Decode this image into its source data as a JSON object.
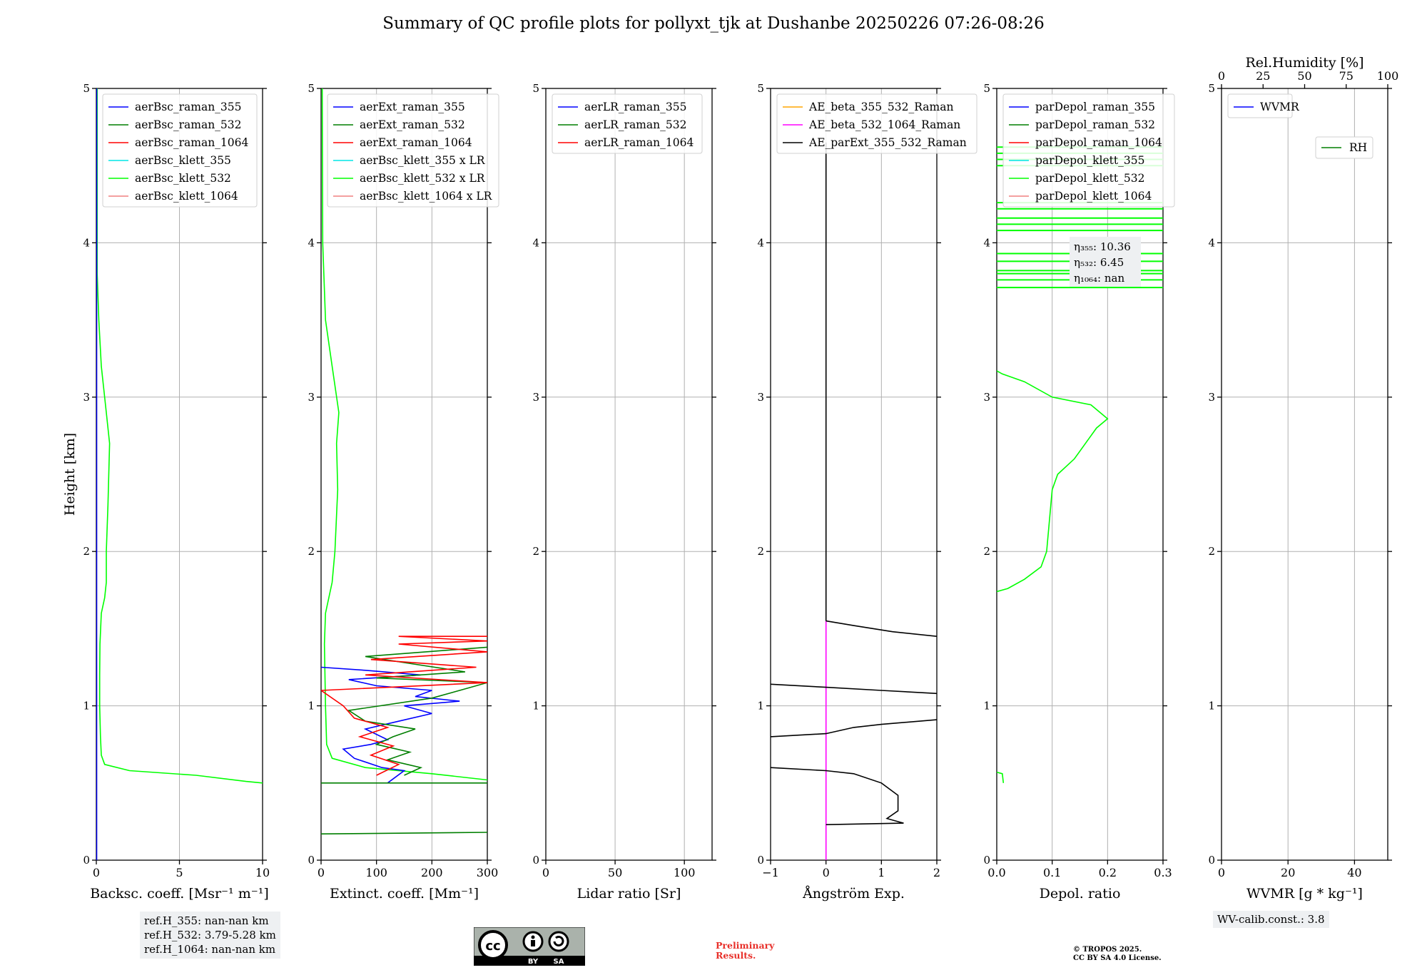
{
  "title": "Summary of QC profile plots for pollyxt_tjk at Dushanbe 20250226 07:26-08:26",
  "ylabel": "Height [km]",
  "y_ticks": [
    "0",
    "1",
    "2",
    "3",
    "4",
    "5"
  ],
  "colors": {
    "blue": "#0000ff",
    "green": "#007f00",
    "red": "#ff0000",
    "cyan": "#00e5e5",
    "lime": "#00ff00",
    "salmon": "#f08080",
    "orange": "#ffa500",
    "magenta": "#ff00ff",
    "black": "#000000"
  },
  "chart_data": [
    {
      "type": "line",
      "xlabel": "Backsc. coeff. [Msr⁻¹ m⁻¹]",
      "xlim": [
        0,
        10
      ],
      "ylim": [
        0,
        5
      ],
      "x_ticks": [
        "0",
        "5",
        "10"
      ],
      "legend": [
        "aerBsc_raman_355",
        "aerBsc_raman_532",
        "aerBsc_raman_1064",
        "aerBsc_klett_355",
        "aerBsc_klett_532",
        "aerBsc_klett_1064"
      ],
      "legend_colors": [
        "blue",
        "green",
        "red",
        "cyan",
        "lime",
        "salmon"
      ],
      "series": [
        {
          "name": "aerBsc_klett_532",
          "color": "lime",
          "points": [
            [
              10,
              0.5
            ],
            [
              9,
              0.51
            ],
            [
              6,
              0.55
            ],
            [
              2,
              0.58
            ],
            [
              0.5,
              0.62
            ],
            [
              0.3,
              0.68
            ],
            [
              0.25,
              0.8
            ],
            [
              0.2,
              1.0
            ],
            [
              0.2,
              1.2
            ],
            [
              0.22,
              1.4
            ],
            [
              0.3,
              1.6
            ],
            [
              0.5,
              1.7
            ],
            [
              0.6,
              1.8
            ],
            [
              0.6,
              2.0
            ],
            [
              0.7,
              2.3
            ],
            [
              0.8,
              2.7
            ],
            [
              0.6,
              2.9
            ],
            [
              0.3,
              3.2
            ],
            [
              0.15,
              3.5
            ],
            [
              0.05,
              3.8
            ],
            [
              0.05,
              4.2
            ],
            [
              0.05,
              4.6
            ],
            [
              0.05,
              5.0
            ]
          ]
        },
        {
          "name": "aerBsc_raman_355",
          "color": "blue",
          "points": [
            [
              0.02,
              0.0
            ],
            [
              0.02,
              5.0
            ]
          ]
        }
      ]
    },
    {
      "type": "line",
      "xlabel": "Extinct. coeff. [Mm⁻¹]",
      "xlim": [
        0,
        300
      ],
      "ylim": [
        0,
        5
      ],
      "x_ticks": [
        "0",
        "100",
        "200",
        "300"
      ],
      "legend": [
        "aerExt_raman_355",
        "aerExt_raman_532",
        "aerExt_raman_1064",
        "aerBsc_klett_355 x LR",
        "aerBsc_klett_532 x LR",
        "aerBsc_klett_1064 x LR"
      ],
      "legend_colors": [
        "blue",
        "green",
        "red",
        "cyan",
        "lime",
        "salmon"
      ],
      "series": [
        {
          "name": "aerBsc_klett_532 x LR",
          "color": "lime",
          "points": [
            [
              300,
              0.52
            ],
            [
              200,
              0.56
            ],
            [
              80,
              0.6
            ],
            [
              20,
              0.66
            ],
            [
              10,
              0.75
            ],
            [
              8,
              1.0
            ],
            [
              6,
              1.4
            ],
            [
              8,
              1.6
            ],
            [
              20,
              1.8
            ],
            [
              25,
              2.0
            ],
            [
              30,
              2.4
            ],
            [
              28,
              2.7
            ],
            [
              32,
              2.9
            ],
            [
              20,
              3.2
            ],
            [
              8,
              3.5
            ],
            [
              3,
              4.0
            ],
            [
              2,
              5.0
            ]
          ]
        },
        {
          "name": "aerExt_raman_355",
          "color": "blue",
          "points": [
            [
              120,
              0.5
            ],
            [
              150,
              0.58
            ],
            [
              110,
              0.6
            ],
            [
              60,
              0.66
            ],
            [
              40,
              0.72
            ],
            [
              90,
              0.75
            ],
            [
              120,
              0.78
            ],
            [
              80,
              0.85
            ],
            [
              140,
              0.9
            ],
            [
              200,
              0.95
            ],
            [
              150,
              1.0
            ],
            [
              250,
              1.03
            ],
            [
              170,
              1.06
            ],
            [
              200,
              1.1
            ],
            [
              100,
              1.13
            ],
            [
              50,
              1.17
            ],
            [
              180,
              1.2
            ],
            [
              80,
              1.23
            ],
            [
              0,
              1.25
            ]
          ]
        },
        {
          "name": "aerExt_raman_532",
          "color": "green",
          "points": [
            [
              0,
              0.17
            ],
            [
              300,
              0.18
            ]
          ]
        },
        {
          "name": "aerExt_raman_532 b",
          "color": "green",
          "points": [
            [
              0,
              0.5
            ],
            [
              300,
              0.5
            ]
          ]
        },
        {
          "name": "aerExt_raman_532 c",
          "color": "green",
          "points": [
            [
              150,
              0.55
            ],
            [
              180,
              0.6
            ],
            [
              120,
              0.65
            ],
            [
              160,
              0.7
            ],
            [
              100,
              0.75
            ],
            [
              130,
              0.8
            ],
            [
              170,
              0.85
            ],
            [
              80,
              0.9
            ],
            [
              50,
              0.97
            ],
            [
              200,
              1.05
            ],
            [
              250,
              1.1
            ],
            [
              300,
              1.15
            ],
            [
              100,
              1.18
            ],
            [
              260,
              1.22
            ],
            [
              150,
              1.28
            ],
            [
              80,
              1.32
            ],
            [
              300,
              1.38
            ]
          ]
        },
        {
          "name": "aerExt_raman_1064",
          "color": "red",
          "points": [
            [
              100,
              0.55
            ],
            [
              140,
              0.62
            ],
            [
              90,
              0.68
            ],
            [
              130,
              0.74
            ],
            [
              70,
              0.8
            ],
            [
              120,
              0.86
            ],
            [
              60,
              0.92
            ],
            [
              40,
              1.0
            ],
            [
              0,
              1.1
            ],
            [
              300,
              1.15
            ],
            [
              80,
              1.2
            ],
            [
              280,
              1.25
            ],
            [
              90,
              1.3
            ],
            [
              300,
              1.35
            ],
            [
              140,
              1.4
            ],
            [
              300,
              1.42
            ],
            [
              140,
              1.45
            ],
            [
              300,
              1.45
            ]
          ]
        }
      ]
    },
    {
      "type": "line",
      "xlabel": "Lidar ratio [Sr]",
      "xlim": [
        0,
        120
      ],
      "ylim": [
        0,
        5
      ],
      "x_ticks": [
        "0",
        "50",
        "100"
      ],
      "legend": [
        "aerLR_raman_355",
        "aerLR_raman_532",
        "aerLR_raman_1064"
      ],
      "legend_colors": [
        "blue",
        "green",
        "red"
      ],
      "series": []
    },
    {
      "type": "line",
      "xlabel": "Ångström Exp.",
      "xlim": [
        -1,
        2
      ],
      "ylim": [
        0,
        5
      ],
      "x_ticks": [
        "−1",
        "0",
        "1",
        "2"
      ],
      "legend": [
        "AE_beta_355_532_Raman",
        "AE_beta_532_1064_Raman",
        "AE_parExt_355_532_Raman"
      ],
      "legend_colors": [
        "orange",
        "magenta",
        "black"
      ],
      "series": [
        {
          "name": "AE_beta_532_1064_Raman",
          "color": "magenta",
          "points": [
            [
              0,
              0.0
            ],
            [
              0,
              1.55
            ]
          ]
        },
        {
          "name": "AE_parExt_355_532_Raman",
          "color": "black",
          "points": [
            [
              0,
              0.23
            ],
            [
              1.4,
              0.24
            ],
            [
              1.1,
              0.27
            ],
            [
              1.3,
              0.32
            ],
            [
              1.3,
              0.42
            ],
            [
              1.0,
              0.5
            ],
            [
              0.5,
              0.56
            ],
            [
              0,
              0.58
            ],
            [
              -1,
              0.6
            ]
          ]
        },
        {
          "name": "AE_parExt_355_532_Raman b",
          "color": "black",
          "points": [
            [
              -1,
              0.8
            ],
            [
              0,
              0.82
            ],
            [
              0.5,
              0.86
            ],
            [
              1.0,
              0.88
            ],
            [
              2,
              0.91
            ]
          ]
        },
        {
          "name": "AE_parExt_355_532_Raman c",
          "color": "black",
          "points": [
            [
              -1,
              1.14
            ],
            [
              0,
              1.12
            ],
            [
              1,
              1.1
            ],
            [
              2,
              1.08
            ]
          ]
        },
        {
          "name": "AE_parExt_355_532_Raman d",
          "color": "black",
          "points": [
            [
              0,
              1.55
            ],
            [
              0.5,
              1.52
            ],
            [
              1.2,
              1.48
            ],
            [
              2,
              1.45
            ]
          ]
        },
        {
          "name": "AE_parExt_355_532_Raman e",
          "color": "black",
          "points": [
            [
              0,
              1.55
            ],
            [
              0,
              4.65
            ]
          ]
        }
      ]
    },
    {
      "type": "line",
      "xlabel": "Depol. ratio",
      "xlim": [
        0,
        0.3
      ],
      "ylim": [
        0,
        5
      ],
      "x_ticks": [
        "0.0",
        "0.1",
        "0.2",
        "0.3"
      ],
      "legend": [
        "parDepol_raman_355",
        "parDepol_raman_532",
        "parDepol_raman_1064",
        "parDepol_klett_355",
        "parDepol_klett_532",
        "parDepol_klett_1064"
      ],
      "legend_colors": [
        "blue",
        "green",
        "red",
        "cyan",
        "lime",
        "salmon"
      ],
      "series": [
        {
          "name": "parDepol_klett_532",
          "color": "lime",
          "points": [
            [
              0,
              1.74
            ],
            [
              0.02,
              1.76
            ],
            [
              0.05,
              1.82
            ],
            [
              0.08,
              1.9
            ],
            [
              0.09,
              2.0
            ],
            [
              0.095,
              2.2
            ],
            [
              0.1,
              2.4
            ],
            [
              0.11,
              2.5
            ],
            [
              0.14,
              2.6
            ],
            [
              0.16,
              2.7
            ],
            [
              0.18,
              2.8
            ],
            [
              0.2,
              2.86
            ],
            [
              0.17,
              2.95
            ],
            [
              0.1,
              3.0
            ],
            [
              0.05,
              3.1
            ],
            [
              0.01,
              3.15
            ],
            [
              0,
              3.17
            ]
          ]
        },
        {
          "name": "parDepol_klett_532 b",
          "color": "lime",
          "points": [
            [
              0,
              0.57
            ],
            [
              0.01,
              0.56
            ],
            [
              0.012,
              0.5
            ]
          ]
        }
      ],
      "hlines": [
        3.71,
        3.76,
        3.8,
        3.82,
        3.88,
        3.93,
        4.08,
        4.12,
        4.16,
        4.22,
        4.26,
        4.5,
        4.54,
        4.58,
        4.62
      ],
      "annotation": [
        "η₃₅₅: 10.36",
        "η₅₃₂: 6.45",
        "η₁₀₆₄: nan"
      ]
    },
    {
      "type": "line",
      "xlabel": "WVMR [g * kg⁻¹]",
      "xlim": [
        0,
        50
      ],
      "ylim": [
        0,
        5
      ],
      "x_ticks": [
        "0",
        "20",
        "40"
      ],
      "top_axis_label": "Rel.Humidity [%]",
      "top_ticks": [
        "0",
        "25",
        "50",
        "75",
        "100"
      ],
      "legend": [
        "WVMR"
      ],
      "legend_colors": [
        "blue"
      ],
      "legend2": [
        "RH"
      ],
      "legend2_colors": [
        "green"
      ],
      "series": []
    }
  ],
  "ref_heights": [
    "ref.H_355: nan-nan km",
    "ref.H_532: 3.79-5.28 km",
    "ref.H_1064: nan-nan km"
  ],
  "wv_calib": "WV-calib.const.: 3.8",
  "prelim": [
    "Preliminary",
    "Results."
  ],
  "copyright": [
    "© TROPOS 2025.",
    "CC BY SA 4.0 License."
  ],
  "cc_badge": {
    "cc": "cc",
    "by": "BY",
    "sa": "SA"
  }
}
